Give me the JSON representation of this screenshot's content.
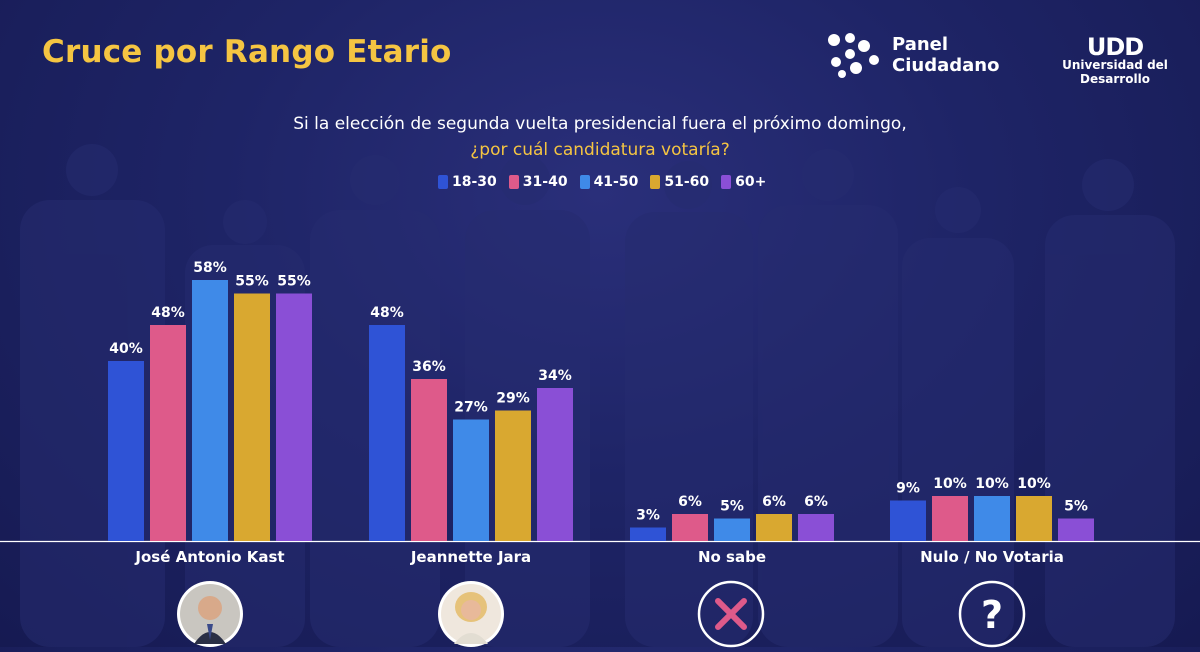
{
  "header": {
    "title": "Cruce por Rango Etario",
    "question_line1": "Si la elección de segunda vuelta presidencial fuera el próximo domingo,",
    "question_line2": "¿por cuál candidatura votaría?"
  },
  "logos": {
    "panel_ciudadano": [
      "Panel",
      "Ciudadano"
    ],
    "udd_mark": "UDD",
    "udd_name": "Universidad del Desarrollo"
  },
  "colors": {
    "background": "#1e2466",
    "title": "#f5c542",
    "series": [
      "#2f53d6",
      "#de5a8a",
      "#3f8ae8",
      "#d9a830",
      "#8a4fd6"
    ]
  },
  "chart_data": {
    "type": "bar",
    "title": "Cruce por Rango Etario",
    "categories": [
      "José Antonio Kast",
      "Jeannette Jara",
      "No sabe",
      "Nulo / No Votaria"
    ],
    "series": [
      {
        "name": "18-30",
        "values": [
          40,
          48,
          3,
          9
        ]
      },
      {
        "name": "31-40",
        "values": [
          48,
          36,
          6,
          10
        ]
      },
      {
        "name": "41-50",
        "values": [
          58,
          27,
          5,
          10
        ]
      },
      {
        "name": "51-60",
        "values": [
          55,
          29,
          6,
          10
        ]
      },
      {
        "name": "60+",
        "values": [
          55,
          34,
          6,
          5
        ]
      }
    ],
    "value_suffix": "%",
    "ylim": [
      0,
      60
    ],
    "grid": false,
    "legend_position": "top-center"
  },
  "category_icons": [
    "candidate-kast-photo",
    "candidate-jara-photo",
    "x-mark-icon",
    "question-mark-icon"
  ]
}
